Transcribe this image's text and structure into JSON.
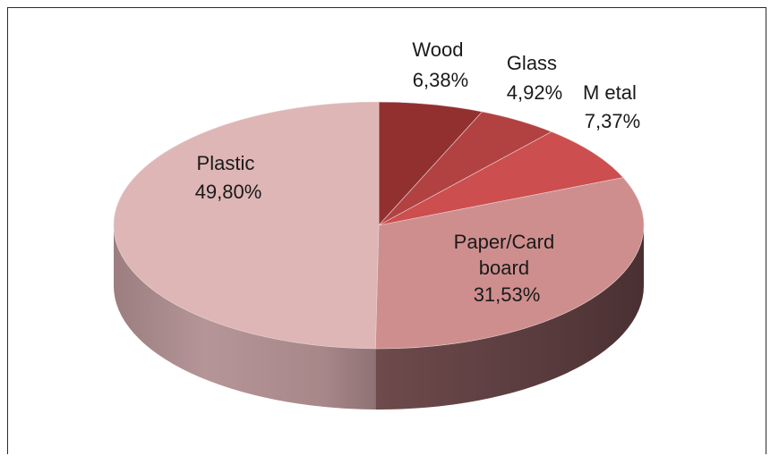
{
  "chart_data": {
    "type": "pie",
    "style": "3d",
    "slices": [
      {
        "name": "Wood",
        "value": 6.38,
        "label_lines": [
          "Wood",
          "6,38%"
        ],
        "color": "#923030"
      },
      {
        "name": "Glass",
        "value": 4.92,
        "label_lines": [
          "Glass",
          "4,92%"
        ],
        "color": "#b24242"
      },
      {
        "name": "Metal",
        "value": 7.37,
        "label_lines": [
          "M etal",
          "7,37%"
        ],
        "color": "#cc4e4e"
      },
      {
        "name": "Paper/Card board",
        "value": 31.53,
        "label_lines": [
          "Paper/Card",
          "board",
          "31,53%"
        ],
        "color": "#cf8e8e"
      },
      {
        "name": "Plastic",
        "value": 49.8,
        "label_lines": [
          "Plastic",
          "49,80%"
        ],
        "color": "#deb6b6"
      }
    ],
    "legend": "none"
  }
}
